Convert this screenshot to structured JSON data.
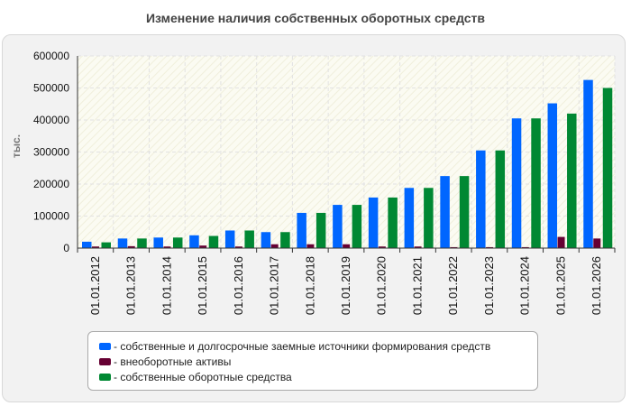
{
  "chart_data": {
    "type": "bar",
    "title": "Изменение наличия собственных оборотных средств",
    "ylabel": "тыс.",
    "xlabel": "",
    "ylim": [
      0,
      600000
    ],
    "yticks": [
      "0",
      "100000",
      "200000",
      "300000",
      "400000",
      "500000",
      "600000"
    ],
    "categories": [
      "01.01.2012",
      "01.01.2013",
      "01.01.2014",
      "01.01.2015",
      "01.01.2016",
      "01.01.2017",
      "01.01.2018",
      "01.01.2019",
      "01.01.2020",
      "01.01.2021",
      "01.01.2022",
      "01.01.2023",
      "01.01.2024",
      "01.01.2025",
      "01.01.2026"
    ],
    "series": [
      {
        "name": "- собственные и долгосрочные заемные источники формирования средств",
        "color": "#0066ff",
        "values": [
          20000,
          30000,
          33000,
          40000,
          55000,
          50000,
          110000,
          135000,
          158000,
          188000,
          225000,
          305000,
          405000,
          452000,
          525000
        ]
      },
      {
        "name": "- внеоборотные активы",
        "color": "#660033",
        "values": [
          5000,
          6000,
          5000,
          8000,
          5000,
          12000,
          12000,
          12000,
          5000,
          5000,
          3000,
          3000,
          3000,
          35000,
          30000
        ]
      },
      {
        "name": "- собственные оборотные средства",
        "color": "#008833",
        "values": [
          18000,
          30000,
          33000,
          38000,
          55000,
          50000,
          110000,
          135000,
          158000,
          188000,
          225000,
          305000,
          405000,
          420000,
          500000
        ]
      }
    ],
    "grid": true,
    "legend_position": "bottom"
  }
}
